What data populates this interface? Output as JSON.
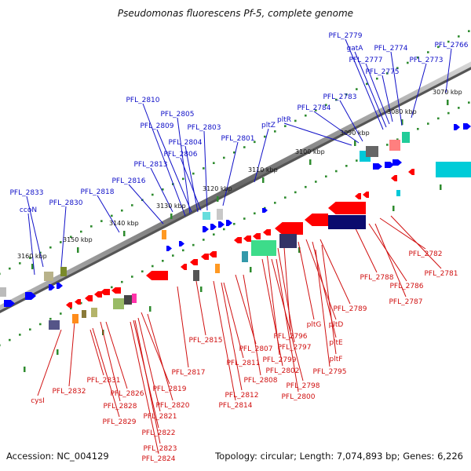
{
  "title": "Pseudomonas fluorescens Pf-5, complete genome",
  "accession": "Accession: NC_004129",
  "topology": "Topology: circular; Length: 7,074,893 bp; Genes: 6,226",
  "colors": {
    "forward_label": "#1010c8",
    "reverse_label": "#d01010",
    "forward_gene": "#0000ff",
    "reverse_gene": "#ff0000",
    "backbone": "#888888",
    "tick": "#2e8b2e"
  },
  "kbp_ticks": [
    "3070 kbp",
    "3080 kbp",
    "3090 kbp",
    "3100 kbp",
    "3110 kbp",
    "3120 kbp",
    "3130 kbp",
    "3140 kbp",
    "3150 kbp",
    "3160 kbp"
  ],
  "forward_labels": [
    "PFL_2779",
    "gatA",
    "PFL_2777",
    "PFL_2774",
    "PFL_2766",
    "PFL_2775",
    "PFL_2773",
    "PFL_2783",
    "PFL_2810",
    "PFL_2784",
    "pltR",
    "PFL_2805",
    "PFL_2809",
    "PFL_2803",
    "pltZ",
    "PFL_2804",
    "PFL_2801",
    "PFL_2806",
    "PFL_2813",
    "PFL_2816",
    "PFL_2818",
    "PFL_2833",
    "PFL_2830",
    "ccoN"
  ],
  "reverse_labels": [
    "PFL_2782",
    "PFL_2781",
    "PFL_2788",
    "PFL_2786",
    "PFL_2787",
    "PFL_2789",
    "pltG",
    "pltD",
    "PFL_2796",
    "pltE",
    "PFL_2815",
    "PFL_2807",
    "PFL_2797",
    "PFL_2811",
    "PFL_2799",
    "pltF",
    "PFL_2817",
    "PFL_2802",
    "PFL_2795",
    "PFL_2808",
    "PFL_2798",
    "PFL_2812",
    "PFL_2800",
    "PFL_2814",
    "PFL_2819",
    "PFL_2831",
    "PFL_2832",
    "PFL_2826",
    "PFL_2820",
    "PFL_2828",
    "cysI",
    "PFL_2821",
    "PFL_2829",
    "PFL_2822",
    "PFL_2823",
    "PFL_2824"
  ]
}
